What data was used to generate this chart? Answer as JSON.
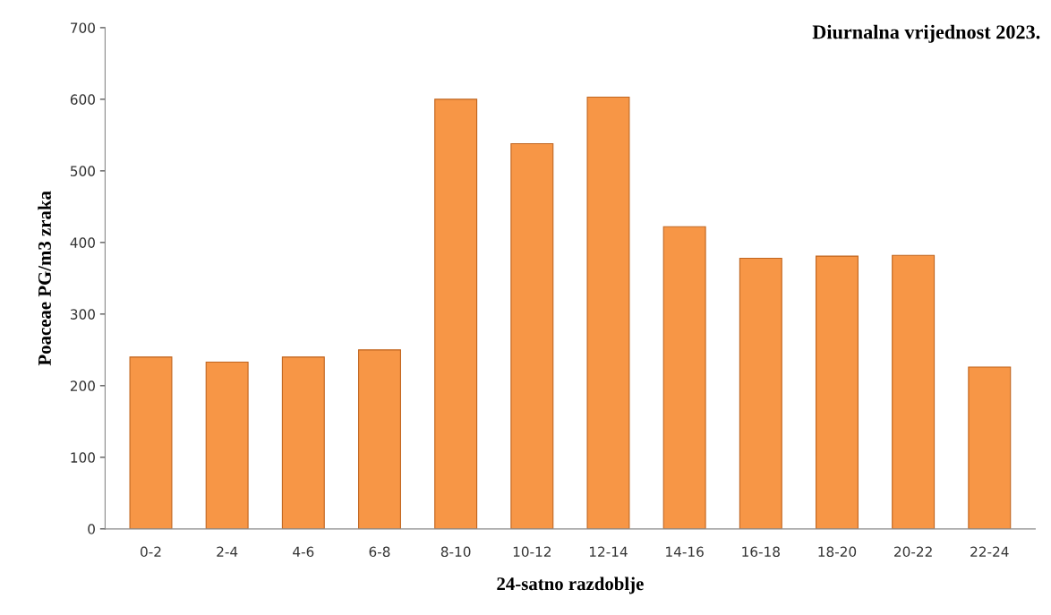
{
  "chart_data": {
    "type": "bar",
    "title": "Diurnalna vrijednost 2023.",
    "xlabel": "24-satno razdoblje",
    "ylabel": "Poaceae PG/m3 zraka",
    "categories": [
      "0-2",
      "2-4",
      "4-6",
      "6-8",
      "8-10",
      "10-12",
      "12-14",
      "14-16",
      "16-18",
      "18-20",
      "20-22",
      "22-24"
    ],
    "values": [
      240,
      233,
      240,
      250,
      600,
      538,
      603,
      422,
      378,
      381,
      382,
      226
    ],
    "color": "#f79646",
    "ylim": [
      0,
      700
    ],
    "yticks": [
      0,
      100,
      200,
      300,
      400,
      500,
      600,
      700
    ],
    "grid": false
  }
}
